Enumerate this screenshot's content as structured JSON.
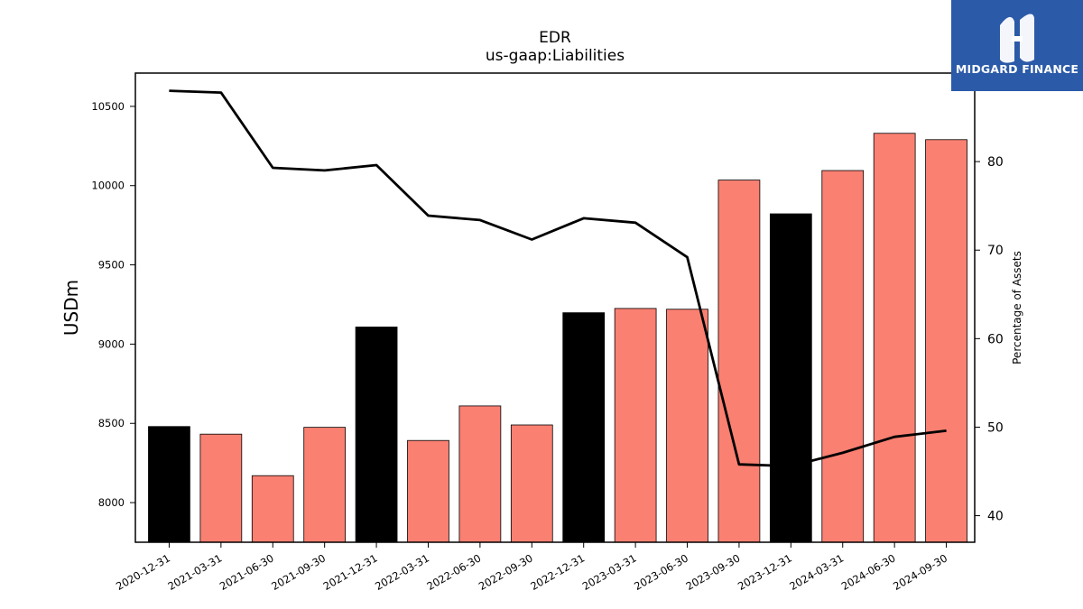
{
  "brand": {
    "name": "MIDGARD FINANCE",
    "bg_color": "#2b5aa8"
  },
  "chart_data": {
    "type": "bar",
    "title": "EDR",
    "subtitle": "us-gaap:Liabilities",
    "ylabel": "USDm",
    "y2label": "Percentage of Assets",
    "ylim": [
      7750,
      10710
    ],
    "y2lim": [
      37,
      90
    ],
    "yticks": [
      8000,
      8500,
      9000,
      9500,
      10000,
      10500
    ],
    "y2ticks": [
      40,
      50,
      60,
      70,
      80
    ],
    "categories": [
      "2020-12-31",
      "2021-03-31",
      "2021-06-30",
      "2021-09-30",
      "2021-12-31",
      "2022-03-31",
      "2022-06-30",
      "2022-09-30",
      "2022-12-31",
      "2023-03-31",
      "2023-06-30",
      "2023-09-30",
      "2023-12-31",
      "2024-03-31",
      "2024-06-30",
      "2024-09-30"
    ],
    "series": [
      {
        "type": "bar",
        "values": [
          8480,
          8432,
          8170,
          8475,
          9108,
          8392,
          8610,
          8490,
          9198,
          9225,
          9220,
          10035,
          9822,
          10095,
          10330,
          10290
        ],
        "colors": [
          "#000000",
          "#fa8072",
          "#fa8072",
          "#fa8072",
          "#000000",
          "#fa8072",
          "#fa8072",
          "#fa8072",
          "#000000",
          "#fa8072",
          "#fa8072",
          "#fa8072",
          "#000000",
          "#fa8072",
          "#fa8072",
          "#fa8072"
        ]
      },
      {
        "type": "line",
        "axis": "right",
        "color": "#000000",
        "values": [
          88.0,
          87.8,
          79.3,
          79.0,
          79.6,
          73.9,
          73.4,
          71.2,
          73.6,
          73.1,
          69.2,
          45.8,
          45.6,
          47.1,
          48.9,
          49.6
        ]
      }
    ]
  }
}
